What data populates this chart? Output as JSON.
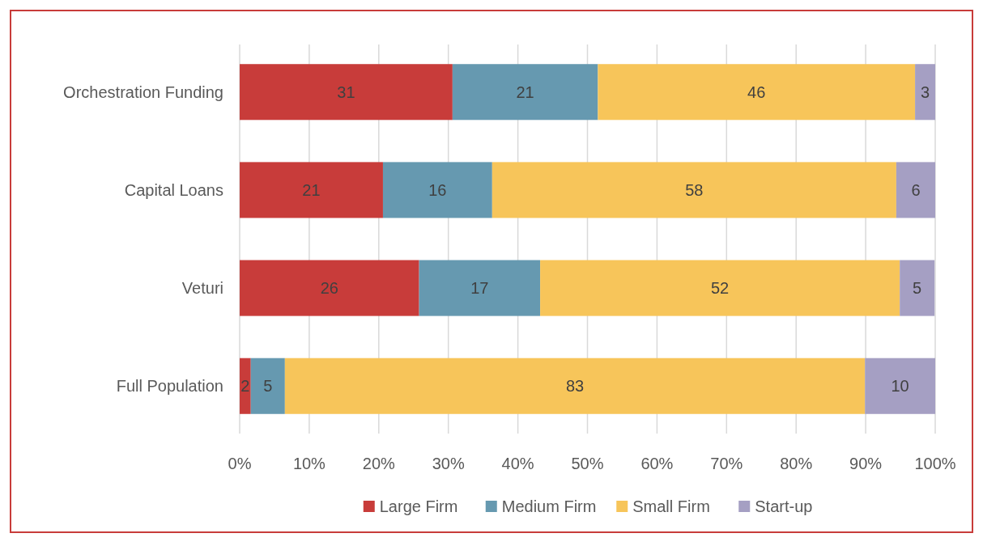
{
  "chart_data": {
    "type": "bar",
    "orientation": "horizontal",
    "stacked": true,
    "categories": [
      "Orchestration Funding",
      "Capital Loans",
      "Veturi",
      "Full Population"
    ],
    "series": [
      {
        "name": "Large Firm",
        "color": "#c83c3a",
        "values": [
          30.6,
          20.6,
          25.8,
          1.6
        ],
        "value_labels": [
          "31",
          "21",
          "26",
          "2"
        ]
      },
      {
        "name": "Medium Firm",
        "color": "#6699b0",
        "values": [
          20.9,
          15.7,
          17.4,
          4.9
        ],
        "value_labels": [
          "21",
          "16",
          "17",
          "5"
        ]
      },
      {
        "name": "Small Firm",
        "color": "#f7c55a",
        "values": [
          45.6,
          58.1,
          51.7,
          83.4
        ],
        "value_labels": [
          "46",
          "58",
          "52",
          "83"
        ]
      },
      {
        "name": "Start-up",
        "color": "#a59fc3",
        "values": [
          2.9,
          5.6,
          5.0,
          10.1
        ],
        "value_labels": [
          "3",
          "6",
          "5",
          "10"
        ]
      }
    ],
    "xlim": [
      0,
      100
    ],
    "xticks": [
      {
        "value": 0,
        "label": "0%"
      },
      {
        "value": 10,
        "label": "10%"
      },
      {
        "value": 20,
        "label": "20%"
      },
      {
        "value": 30,
        "label": "30%"
      },
      {
        "value": 40,
        "label": "40%"
      },
      {
        "value": 50,
        "label": "50%"
      },
      {
        "value": 60,
        "label": "60%"
      },
      {
        "value": 70,
        "label": "70%"
      },
      {
        "value": 80,
        "label": "80%"
      },
      {
        "value": 90,
        "label": "90%"
      },
      {
        "value": 100,
        "label": "100%"
      }
    ],
    "grid": "x",
    "legend": "bottom"
  }
}
